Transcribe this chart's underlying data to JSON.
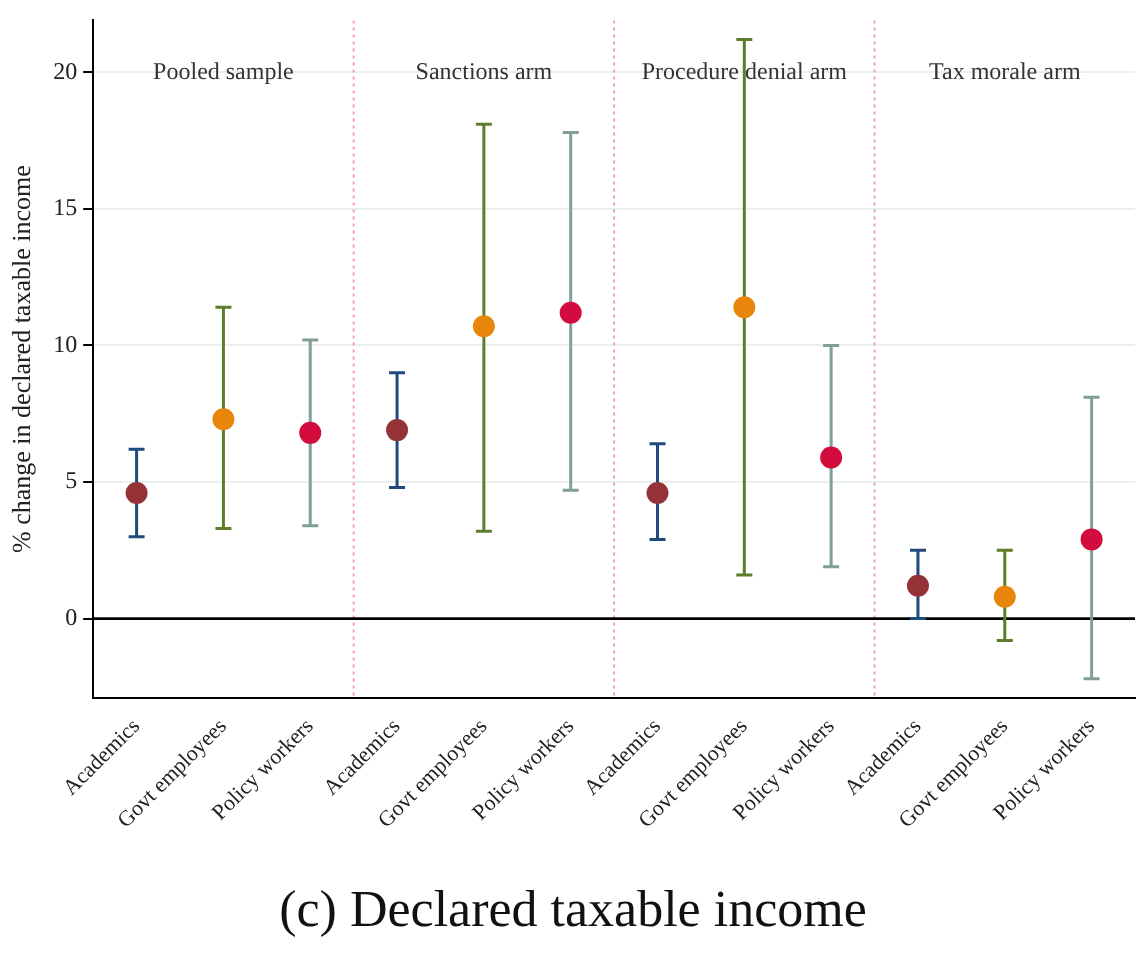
{
  "chart_data": {
    "type": "scatter",
    "title": "(c) Declared taxable income",
    "ylabel": "% change in declared taxable income",
    "categories": [
      "Academics",
      "Govt employees",
      "Policy workers",
      "Academics",
      "Govt employees",
      "Policy workers",
      "Academics",
      "Govt employees",
      "Policy workers",
      "Academics",
      "Govt employees",
      "Policy workers"
    ],
    "series": [
      {
        "color": "#943238",
        "values": [
          4.6,
          null,
          null,
          6.9,
          null,
          null,
          4.6,
          null,
          null,
          1.2,
          null,
          null
        ],
        "errors": [
          [
            3.0,
            6.2
          ],
          null,
          null,
          [
            4.8,
            9.0
          ],
          null,
          null,
          [
            2.9,
            6.4
          ],
          null,
          null,
          [
            0.0,
            2.5
          ],
          null,
          null
        ]
      },
      {
        "color": "#e8860c",
        "values": [
          null,
          7.3,
          null,
          null,
          10.7,
          null,
          null,
          11.4,
          null,
          null,
          0.8,
          null
        ],
        "errors": [
          null,
          [
            3.3,
            11.4
          ],
          null,
          null,
          [
            3.2,
            18.1
          ],
          null,
          null,
          [
            1.6,
            21.2
          ],
          null,
          null,
          [
            -0.8,
            2.5
          ],
          null
        ]
      },
      {
        "color": "#d20c3c",
        "values": [
          null,
          null,
          6.8,
          null,
          null,
          11.2,
          null,
          null,
          5.9,
          null,
          null,
          2.9
        ],
        "errors": [
          null,
          null,
          [
            3.4,
            10.2
          ],
          null,
          null,
          [
            4.7,
            17.8
          ],
          null,
          null,
          [
            1.9,
            10.0
          ],
          null,
          null,
          [
            -2.2,
            8.1
          ]
        ]
      }
    ],
    "annotations": [
      "Pooled sample",
      "Sanctions arm",
      "Procedure denial arm",
      "Tax morale arm"
    ],
    "ylim": [
      -2.9,
      21.9
    ],
    "yticks": [
      0,
      5,
      10,
      15,
      20
    ],
    "grid": "y",
    "legend": false,
    "marker": "circle",
    "ref_lines": [
      {
        "axis": "y",
        "value": 0,
        "color": "#000000"
      }
    ]
  }
}
